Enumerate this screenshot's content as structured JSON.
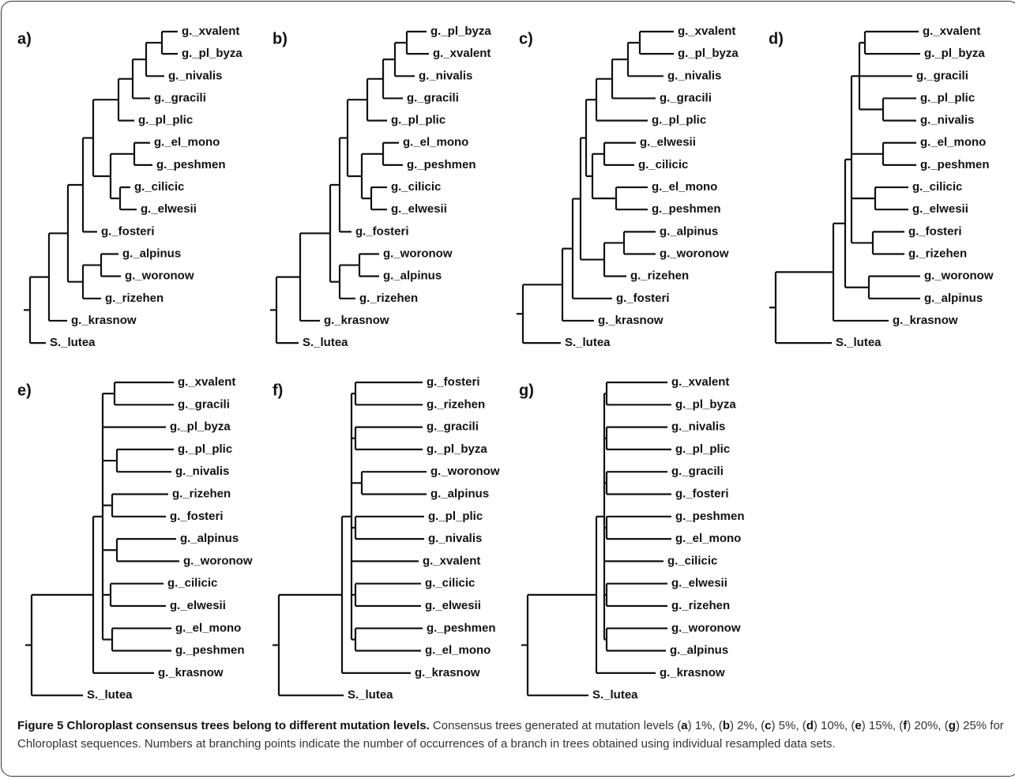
{
  "panels": [
    {
      "label": "a)",
      "leaves": [
        "g._xvalent",
        "g._pl_byza",
        "g._nivalis",
        "g._gracili",
        "g._pl_plic",
        "g._el_mono",
        "g._peshmen",
        "g._cilicic",
        "g._elwesii",
        "g._fosteri",
        "g._alpinus",
        "g._woronow",
        "g._rizehen",
        "g._krasnow",
        "S._lutea"
      ]
    },
    {
      "label": "b)",
      "leaves": [
        "g._pl_byza",
        "g._xvalent",
        "g._nivalis",
        "g._gracili",
        "g._pl_plic",
        "g._el_mono",
        "g._peshmen",
        "g._cilicic",
        "g._elwesii",
        "g._fosteri",
        "g._woronow",
        "g._alpinus",
        "g._rizehen",
        "g._krasnow",
        "S._lutea"
      ]
    },
    {
      "label": "c)",
      "leaves": [
        "g._xvalent",
        "g._pl_byza",
        "g._nivalis",
        "g._gracili",
        "g._pl_plic",
        "g._elwesii",
        "g._cilicic",
        "g._el_mono",
        "g._peshmen",
        "g._alpinus",
        "g._woronow",
        "g._rizehen",
        "g._fosteri",
        "g._krasnow",
        "S._lutea"
      ]
    },
    {
      "label": "d)",
      "leaves": [
        "g._xvalent",
        "g._pl_byza",
        "g._gracili",
        "g._pl_plic",
        "g._nivalis",
        "g._el_mono",
        "g._peshmen",
        "g._cilicic",
        "g._elwesii",
        "g._fosteri",
        "g._rizehen",
        "g._woronow",
        "g._alpinus",
        "g._krasnow",
        "S._lutea"
      ]
    },
    {
      "label": "e)",
      "leaves": [
        "g._xvalent",
        "g._gracili",
        "g._pl_byza",
        "g._pl_plic",
        "g._nivalis",
        "g._rizehen",
        "g._fosteri",
        "g._alpinus",
        "g._woronow",
        "g._cilicic",
        "g._elwesii",
        "g._el_mono",
        "g._peshmen",
        "g._krasnow",
        "S._lutea"
      ]
    },
    {
      "label": "f)",
      "leaves": [
        "g._fosteri",
        "g._rizehen",
        "g._gracili",
        "g._pl_byza",
        "g._woronow",
        "g._alpinus",
        "g._pl_plic",
        "g._nivalis",
        "g._xvalent",
        "g._cilicic",
        "g._elwesii",
        "g._peshmen",
        "g._el_mono",
        "g._krasnow",
        "S._lutea"
      ]
    },
    {
      "label": "g)",
      "leaves": [
        "g._xvalent",
        "g._pl_byza",
        "g._nivalis",
        "g._pl_plic",
        "g._gracili",
        "g._fosteri",
        "g._peshmen",
        "g._el_mono",
        "g._cilicic",
        "g._elwesii",
        "g._rizehen",
        "g._woronow",
        "g._alpinus",
        "g._krasnow",
        "S._lutea"
      ]
    }
  ],
  "caption": {
    "title": "Figure 5 Chloroplast consensus trees belong to different mutation levels.",
    "body": [
      " Consensus trees generated at mutation levels (",
      "a",
      ") 1%, (",
      "b",
      ") 2%, (",
      "c",
      ") 5%, (",
      "d",
      ") 10%, (",
      "e",
      ") 15%, (",
      "f",
      ") 20%, (",
      "g",
      ") 25% for Chloroplast sequences. Numbers at branching points indicate the number of occurrences of a branch in trees obtained using individual resampled data sets."
    ]
  }
}
